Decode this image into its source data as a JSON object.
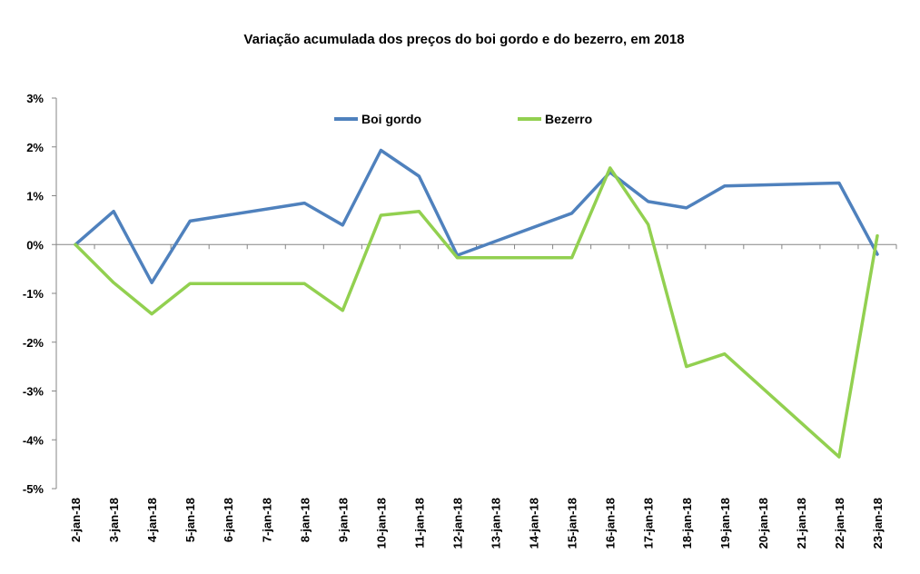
{
  "chart_data": {
    "type": "line",
    "title": "Variação acumulada dos preços do boi gordo e do bezerro, em 2018",
    "xlabel": "",
    "ylabel": "",
    "categories": [
      "2-jan-18",
      "3-jan-18",
      "4-jan-18",
      "5-jan-18",
      "6-jan-18",
      "7-jan-18",
      "8-jan-18",
      "9-jan-18",
      "10-jan-18",
      "11-jan-18",
      "12-jan-18",
      "13-jan-18",
      "14-jan-18",
      "15-jan-18",
      "16-jan-18",
      "17-jan-18",
      "18-jan-18",
      "19-jan-18",
      "20-jan-18",
      "21-jan-18",
      "22-jan-18",
      "23-jan-18"
    ],
    "series": [
      {
        "name": "Boi gordo",
        "color": "#4F81BD",
        "points": [
          {
            "x": 0,
            "y": 0.0
          },
          {
            "x": 1,
            "y": 0.68
          },
          {
            "x": 2,
            "y": -0.78
          },
          {
            "x": 3,
            "y": 0.48
          },
          {
            "x": 6,
            "y": 0.85
          },
          {
            "x": 7,
            "y": 0.4
          },
          {
            "x": 8,
            "y": 1.93
          },
          {
            "x": 9,
            "y": 1.4
          },
          {
            "x": 10,
            "y": -0.22
          },
          {
            "x": 13,
            "y": 0.64
          },
          {
            "x": 14,
            "y": 1.48
          },
          {
            "x": 15,
            "y": 0.88
          },
          {
            "x": 16,
            "y": 0.75
          },
          {
            "x": 17,
            "y": 1.2
          },
          {
            "x": 20,
            "y": 1.26
          },
          {
            "x": 21,
            "y": -0.2
          }
        ]
      },
      {
        "name": "Bezerro",
        "color": "#92D050",
        "points": [
          {
            "x": 0,
            "y": 0.0
          },
          {
            "x": 1,
            "y": -0.78
          },
          {
            "x": 2,
            "y": -1.42
          },
          {
            "x": 3,
            "y": -0.8
          },
          {
            "x": 6,
            "y": -0.8
          },
          {
            "x": 7,
            "y": -1.35
          },
          {
            "x": 8,
            "y": 0.6
          },
          {
            "x": 9,
            "y": 0.68
          },
          {
            "x": 10,
            "y": -0.27
          },
          {
            "x": 13,
            "y": -0.27
          },
          {
            "x": 14,
            "y": 1.57
          },
          {
            "x": 15,
            "y": 0.41
          },
          {
            "x": 16,
            "y": -2.5
          },
          {
            "x": 17,
            "y": -2.24
          },
          {
            "x": 20,
            "y": -4.35
          },
          {
            "x": 21,
            "y": 0.18
          }
        ]
      }
    ],
    "y_ticks": [
      {
        "value": 3,
        "label": "3%"
      },
      {
        "value": 2,
        "label": "2%"
      },
      {
        "value": 1,
        "label": "1%"
      },
      {
        "value": 0,
        "label": "0%"
      },
      {
        "value": -1,
        "label": "-1%"
      },
      {
        "value": -2,
        "label": "-2%"
      },
      {
        "value": -3,
        "label": "-3%"
      },
      {
        "value": -4,
        "label": "-4%"
      },
      {
        "value": -5,
        "label": "-5%"
      }
    ],
    "ylim": [
      -5,
      3
    ],
    "grid": false,
    "legend": "top"
  }
}
